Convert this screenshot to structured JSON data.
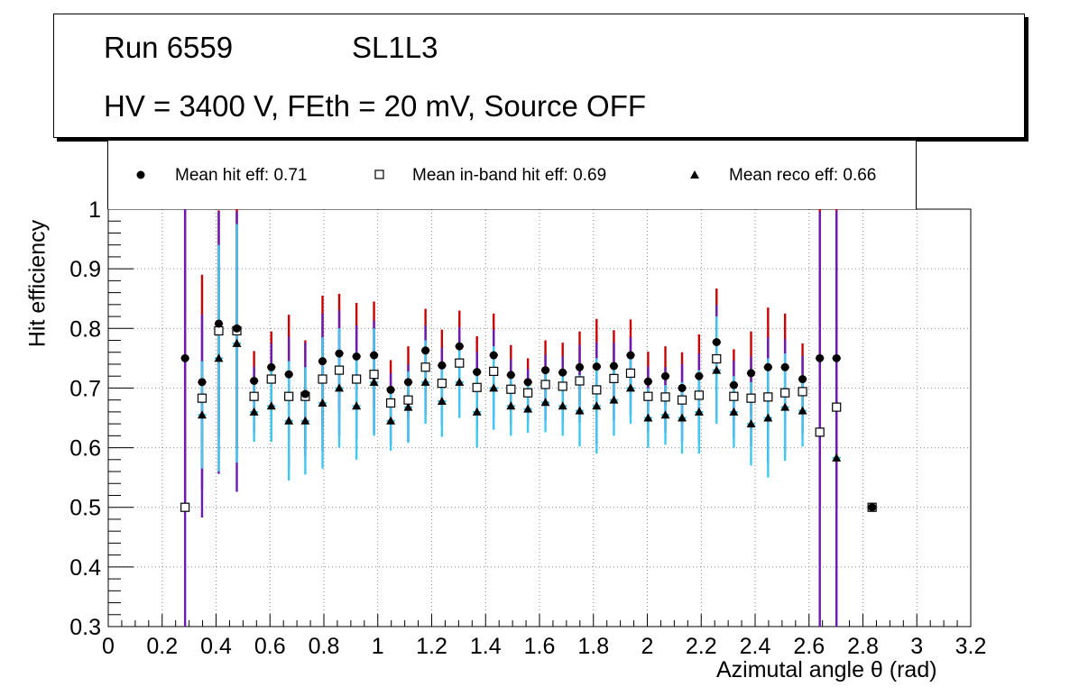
{
  "header": {
    "run": "Run 6559",
    "layer": "SL1L3",
    "conditions": "HV = 3400 V, FEth = 20 mV, Source OFF"
  },
  "legend": {
    "hit": "Mean hit  eff: 0.71",
    "inband": "Mean in-band hit eff: 0.69",
    "reco": "Mean reco eff: 0.66"
  },
  "colors": {
    "hit_error": "#cc0000",
    "inband_error": "#6a1bb5",
    "reco_error": "#3cc8f0",
    "marker": "#000000",
    "grid": "#888888"
  },
  "chart_data": {
    "type": "scatter",
    "xlabel": "Azimutal angle θ (rad)",
    "ylabel": "Hit efficiency",
    "xlim": [
      0,
      3.2
    ],
    "ylim": [
      0.3,
      1.0
    ],
    "xticks": [
      "0",
      "0.2",
      "0.4",
      "0.6",
      "0.8",
      "1",
      "1.2",
      "1.4",
      "1.6",
      "1.8",
      "2",
      "2.2",
      "2.4",
      "2.6",
      "2.8",
      "3",
      "3.2"
    ],
    "yticks": [
      "0.3",
      "0.4",
      "0.5",
      "0.6",
      "0.7",
      "0.8",
      "0.9",
      "1"
    ],
    "grid": true,
    "bin_half_width": 0.0157,
    "x": [
      0.285,
      0.348,
      0.41,
      0.477,
      0.541,
      0.605,
      0.67,
      0.731,
      0.795,
      0.857,
      0.921,
      0.986,
      1.048,
      1.113,
      1.177,
      1.238,
      1.303,
      1.368,
      1.43,
      1.494,
      1.557,
      1.622,
      1.686,
      1.749,
      1.812,
      1.876,
      1.938,
      2.003,
      2.067,
      2.129,
      2.192,
      2.257,
      2.321,
      2.385,
      2.448,
      2.511,
      2.576,
      2.64,
      2.702,
      2.834
    ],
    "series": [
      {
        "name": "Mean hit  eff: 0.71",
        "marker": "circle",
        "values": [
          0.75,
          0.71,
          0.808,
          0.8,
          0.712,
          0.735,
          0.723,
          0.69,
          0.745,
          0.758,
          0.753,
          0.755,
          0.697,
          0.71,
          0.763,
          0.738,
          0.77,
          0.727,
          0.755,
          0.722,
          0.71,
          0.73,
          0.726,
          0.735,
          0.736,
          0.737,
          0.755,
          0.711,
          0.72,
          0.7,
          0.72,
          0.777,
          0.705,
          0.725,
          0.735,
          0.735,
          0.715,
          0.75,
          0.75,
          0.5
        ],
        "err_up": [
          0.25,
          0.18,
          0.19,
          0.2,
          0.05,
          0.06,
          0.1,
          0.09,
          0.11,
          0.1,
          0.09,
          0.09,
          0.05,
          0.06,
          0.07,
          0.06,
          0.06,
          0.06,
          0.07,
          0.05,
          0.04,
          0.05,
          0.05,
          0.06,
          0.08,
          0.06,
          0.06,
          0.05,
          0.05,
          0.06,
          0.07,
          0.09,
          0.06,
          0.07,
          0.1,
          0.09,
          0.06,
          0.25,
          0.25,
          0.0
        ],
        "err_down": [
          0.25,
          0.18,
          0.19,
          0.2,
          0.05,
          0.06,
          0.1,
          0.09,
          0.11,
          0.1,
          0.09,
          0.09,
          0.05,
          0.06,
          0.07,
          0.06,
          0.06,
          0.06,
          0.07,
          0.05,
          0.04,
          0.05,
          0.05,
          0.06,
          0.08,
          0.06,
          0.06,
          0.05,
          0.05,
          0.06,
          0.07,
          0.09,
          0.06,
          0.07,
          0.1,
          0.09,
          0.06,
          0.25,
          0.25,
          0.0
        ]
      },
      {
        "name": "Mean in-band hit eff: 0.69",
        "marker": "open-square",
        "values": [
          0.5,
          0.683,
          0.796,
          0.796,
          0.686,
          0.715,
          0.686,
          0.686,
          0.715,
          0.73,
          0.715,
          0.723,
          0.675,
          0.68,
          0.735,
          0.708,
          0.742,
          0.701,
          0.728,
          0.698,
          0.692,
          0.706,
          0.703,
          0.712,
          0.697,
          0.716,
          0.725,
          0.686,
          0.685,
          0.68,
          0.688,
          0.749,
          0.686,
          0.683,
          0.685,
          0.692,
          0.694,
          0.626,
          0.668,
          0.5
        ],
        "err_up": [
          0.5,
          0.14,
          0.2,
          0.2,
          0.05,
          0.06,
          0.1,
          0.09,
          0.11,
          0.1,
          0.09,
          0.09,
          0.05,
          0.06,
          0.07,
          0.06,
          0.06,
          0.06,
          0.07,
          0.05,
          0.04,
          0.05,
          0.05,
          0.06,
          0.08,
          0.06,
          0.06,
          0.05,
          0.05,
          0.06,
          0.07,
          0.09,
          0.06,
          0.07,
          0.1,
          0.09,
          0.06,
          0.37,
          0.33,
          0.0
        ],
        "err_down": [
          0.2,
          0.2,
          0.24,
          0.27,
          0.06,
          0.07,
          0.12,
          0.1,
          0.12,
          0.11,
          0.1,
          0.1,
          0.07,
          0.07,
          0.08,
          0.07,
          0.07,
          0.07,
          0.08,
          0.06,
          0.05,
          0.06,
          0.06,
          0.07,
          0.09,
          0.07,
          0.07,
          0.06,
          0.06,
          0.07,
          0.08,
          0.1,
          0.07,
          0.08,
          0.11,
          0.1,
          0.07,
          0.33,
          0.37,
          0.0
        ]
      },
      {
        "name": "Mean reco eff: 0.66",
        "marker": "triangle",
        "values": [
          0.5,
          0.655,
          0.75,
          0.775,
          0.66,
          0.67,
          0.645,
          0.645,
          0.675,
          0.7,
          0.67,
          0.71,
          0.645,
          0.668,
          0.71,
          0.678,
          0.71,
          0.66,
          0.7,
          0.67,
          0.665,
          0.676,
          0.67,
          0.662,
          0.67,
          0.68,
          0.7,
          0.65,
          0.655,
          0.65,
          0.66,
          0.73,
          0.66,
          0.64,
          0.65,
          0.668,
          0.662,
          0.626,
          0.583,
          0.5
        ],
        "err_up": [
          0.0,
          0.09,
          0.19,
          0.2,
          0.05,
          0.06,
          0.1,
          0.09,
          0.11,
          0.1,
          0.09,
          0.09,
          0.05,
          0.06,
          0.07,
          0.06,
          0.06,
          0.06,
          0.07,
          0.05,
          0.04,
          0.05,
          0.05,
          0.06,
          0.08,
          0.06,
          0.06,
          0.05,
          0.05,
          0.06,
          0.07,
          0.09,
          0.06,
          0.07,
          0.1,
          0.09,
          0.06,
          0.0,
          0.0,
          0.0
        ],
        "err_down": [
          0.0,
          0.09,
          0.19,
          0.2,
          0.05,
          0.06,
          0.1,
          0.09,
          0.11,
          0.1,
          0.09,
          0.09,
          0.05,
          0.06,
          0.07,
          0.06,
          0.06,
          0.06,
          0.07,
          0.05,
          0.04,
          0.05,
          0.05,
          0.06,
          0.08,
          0.06,
          0.06,
          0.05,
          0.05,
          0.06,
          0.07,
          0.09,
          0.06,
          0.07,
          0.1,
          0.09,
          0.06,
          0.0,
          0.0,
          0.0
        ]
      }
    ]
  }
}
